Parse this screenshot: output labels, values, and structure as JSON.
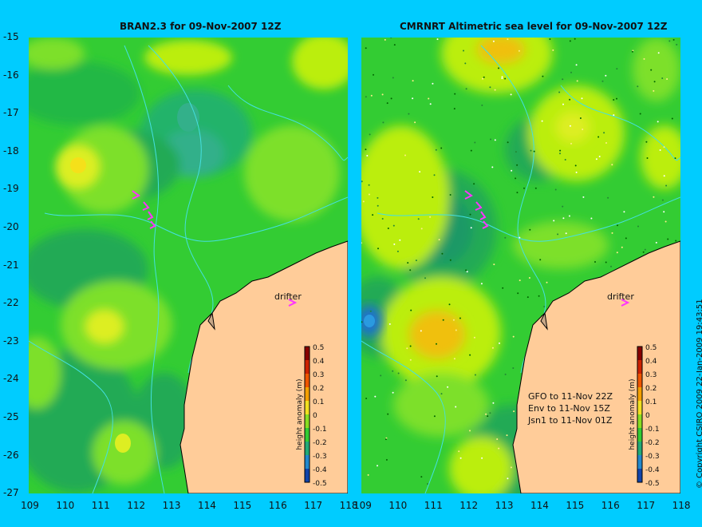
{
  "panels": [
    {
      "title": "BRAN2.3 for 09-Nov-2007 12Z",
      "drifter_label": "drifter",
      "satellite_tracks": [],
      "colorbar": {
        "label": "height anomaly (m)",
        "ticks": [
          "0.5",
          "0.4",
          "0.3",
          "0.2",
          "0.1",
          "0",
          "-0.1",
          "-0.2",
          "-0.3",
          "-0.4",
          "-0.5"
        ]
      }
    },
    {
      "title": "CMRNRT Altimetric sea level  for 09-Nov-2007 12Z",
      "drifter_label": "drifter",
      "satellite_tracks": [
        "GFO to 11-Nov 22Z",
        "Env to 11-Nov 15Z",
        "Jsn1 to 11-Nov 01Z"
      ],
      "colorbar": {
        "label": "height anomaly (m)",
        "ticks": [
          "0.5",
          "0.4",
          "0.3",
          "0.2",
          "0.1",
          "0",
          "-0.1",
          "-0.2",
          "-0.3",
          "-0.4",
          "-0.5"
        ]
      }
    }
  ],
  "axes": {
    "y_ticks": [
      "-15",
      "-16",
      "-17",
      "-18",
      "-19",
      "-20",
      "-21",
      "-22",
      "-23",
      "-24",
      "-25",
      "-26",
      "-27"
    ],
    "x_ticks": [
      "109",
      "110",
      "111",
      "112",
      "113",
      "114",
      "115",
      "116",
      "117",
      "118"
    ]
  },
  "copyright": "© Copyright CSIRO 2009   22-Jan-2009 19:43:51",
  "colors": {
    "background": "#00ccff",
    "land": "#ffcc99",
    "contour": "#44e0e0",
    "drifter": "#ff33ff"
  }
}
